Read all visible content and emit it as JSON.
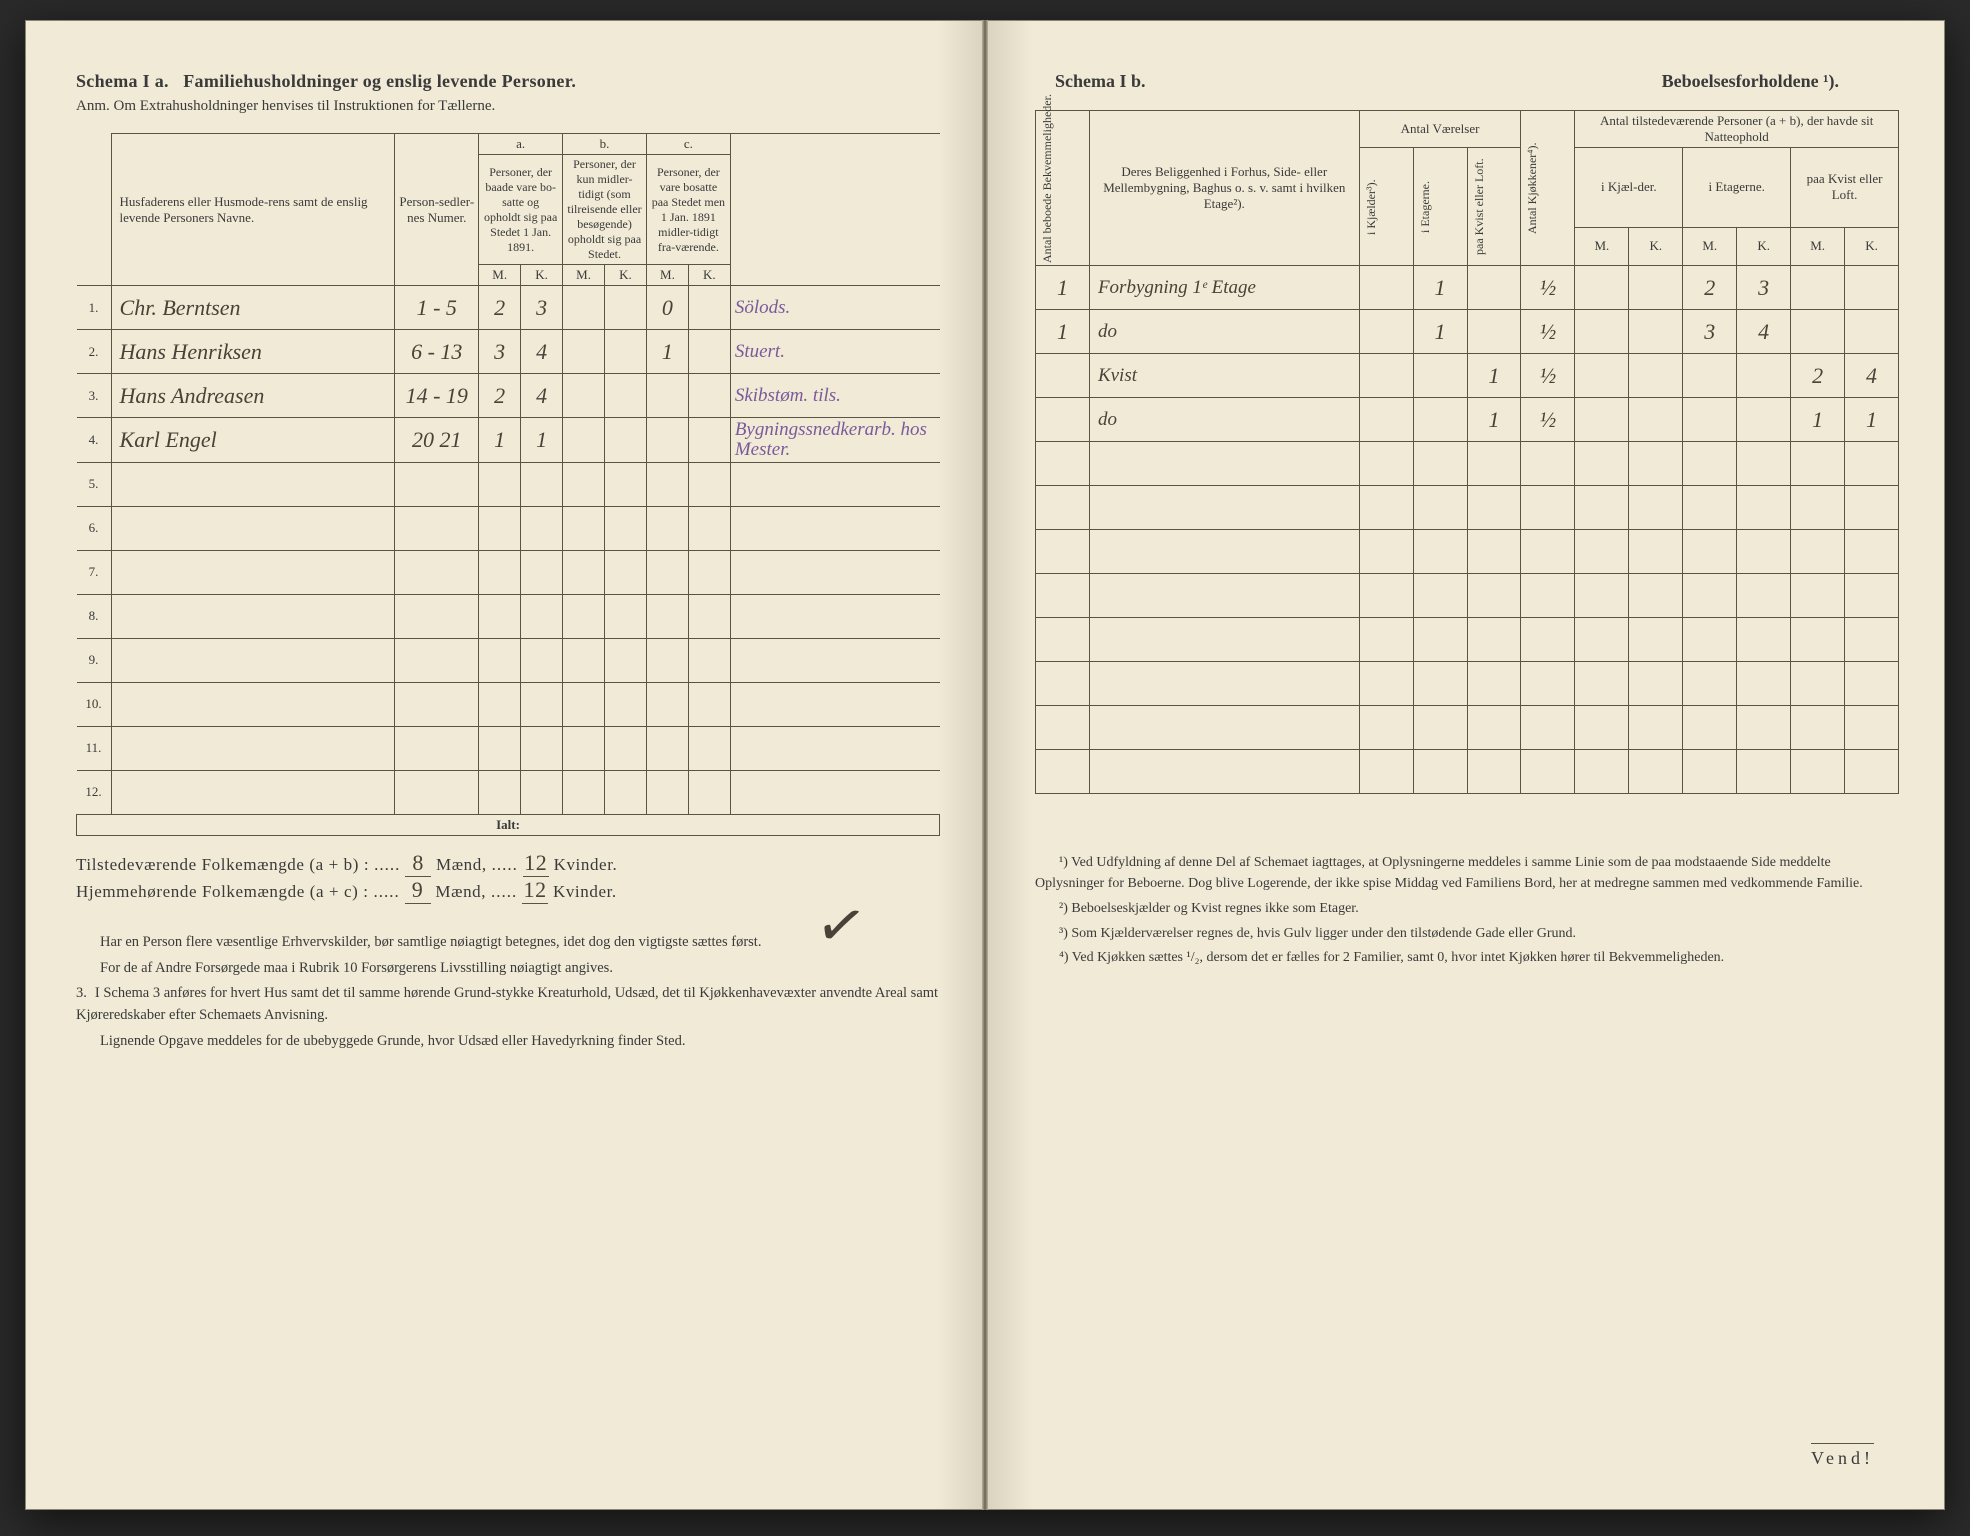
{
  "left": {
    "schema_label": "Schema I a.",
    "title": "Familiehusholdninger og enslig levende Personer.",
    "subtitle": "Anm. Om Extrahusholdninger henvises til Instruktionen for Tællerne.",
    "columns": {
      "name": "Husfaderens eller Husmode-rens samt de enslig levende Personers Navne.",
      "pers_num": "Person-sedler-nes Numer.",
      "a": "a.",
      "a_desc": "Personer, der baade vare bo-satte og opholdt sig paa Stedet 1 Jan. 1891.",
      "b": "b.",
      "b_desc": "Personer, der kun midler-tidigt (som tilreisende eller besøgende) opholdt sig paa Stedet.",
      "c": "c.",
      "c_desc": "Personer, der vare bosatte paa Stedet men 1 Jan. 1891 midler-tidigt fra-værende.",
      "m": "M.",
      "k": "K."
    },
    "rows": [
      {
        "n": "1.",
        "name": "Chr. Berntsen",
        "nums": "1 - 5",
        "aM": "2",
        "aK": "3",
        "bM": "",
        "bK": "",
        "cM": "0",
        "cK": "",
        "occ": "Sölods."
      },
      {
        "n": "2.",
        "name": "Hans Henriksen",
        "nums": "6 - 13",
        "aM": "3",
        "aK": "4",
        "bM": "",
        "bK": "",
        "cM": "1",
        "cK": "",
        "occ": "Stuert."
      },
      {
        "n": "3.",
        "name": "Hans Andreasen",
        "nums": "14 - 19",
        "aM": "2",
        "aK": "4",
        "bM": "",
        "bK": "",
        "cM": "",
        "cK": "",
        "occ": "Skibstøm. tils."
      },
      {
        "n": "4.",
        "name": "Karl Engel",
        "nums": "20 21",
        "aM": "1",
        "aK": "1",
        "bM": "",
        "bK": "",
        "cM": "",
        "cK": "",
        "occ": "Bygningssnedkerarb. hos Mester."
      },
      {
        "n": "5.",
        "name": "",
        "nums": "",
        "aM": "",
        "aK": "",
        "bM": "",
        "bK": "",
        "cM": "",
        "cK": "",
        "occ": ""
      },
      {
        "n": "6.",
        "name": "",
        "nums": "",
        "aM": "",
        "aK": "",
        "bM": "",
        "bK": "",
        "cM": "",
        "cK": "",
        "occ": ""
      },
      {
        "n": "7.",
        "name": "",
        "nums": "",
        "aM": "",
        "aK": "",
        "bM": "",
        "bK": "",
        "cM": "",
        "cK": "",
        "occ": ""
      },
      {
        "n": "8.",
        "name": "",
        "nums": "",
        "aM": "",
        "aK": "",
        "bM": "",
        "bK": "",
        "cM": "",
        "cK": "",
        "occ": ""
      },
      {
        "n": "9.",
        "name": "",
        "nums": "",
        "aM": "",
        "aK": "",
        "bM": "",
        "bK": "",
        "cM": "",
        "cK": "",
        "occ": ""
      },
      {
        "n": "10.",
        "name": "",
        "nums": "",
        "aM": "",
        "aK": "",
        "bM": "",
        "bK": "",
        "cM": "",
        "cK": "",
        "occ": ""
      },
      {
        "n": "11.",
        "name": "",
        "nums": "",
        "aM": "",
        "aK": "",
        "bM": "",
        "bK": "",
        "cM": "",
        "cK": "",
        "occ": ""
      },
      {
        "n": "12.",
        "name": "",
        "nums": "",
        "aM": "",
        "aK": "",
        "bM": "",
        "bK": "",
        "cM": "",
        "cK": "",
        "occ": ""
      }
    ],
    "ialt": "Ialt:",
    "totals": {
      "line1_label": "Tilstedeværende Folkemængde (a + b) : ",
      "line1_m": "8",
      "line1_mlabel": "Mænd, ",
      "line1_k": "12",
      "line1_klabel": "Kvinder.",
      "line2_label": "Hjemmehørende Folkemængde (a + c) : ",
      "line2_m": "9",
      "line2_k": "12"
    },
    "footer": [
      "Har en Person flere væsentlige Erhvervskilder, bør samtlige nøiagtigt betegnes, idet dog den vigtigste sættes først.",
      "For de af Andre Forsørgede maa i Rubrik 10 Forsørgerens Livsstilling nøiagtigt angives.",
      "I Schema 3 anføres for hvert Hus samt det til samme hørende Grund-stykke Kreaturhold, Udsæd, det til Kjøkkenhavevæxter anvendte Areal samt Kjøreredskaber efter Schemaets Anvisning.",
      "Lignende Opgave meddeles for de ubebyggede Grunde, hvor Udsæd eller Havedyrkning finder Sted."
    ],
    "footer_marker": "3."
  },
  "right": {
    "schema_label": "Schema I b.",
    "title": "Beboelsesforholdene ¹).",
    "columns": {
      "bekv": "Antal beboede Bekvemmeligheder.",
      "belig": "Deres Beliggenhed i Forhus, Side- eller Mellembygning, Baghus o. s. v. samt i hvilken Etage²).",
      "vaer": "Antal Værelser",
      "kjok": "Antal Kjøkkener⁴).",
      "natt": "Antal tilstedeværende Personer (a + b), der havde sit Natteophold",
      "kjael": "i Kjælder³).",
      "etag": "i Etagerne.",
      "kvist": "paa Kvist eller Loft.",
      "kjael2": "i Kjæl-der.",
      "etag2": "i Etagerne.",
      "kvist2": "paa Kvist eller Loft.",
      "m": "M.",
      "k": "K."
    },
    "rows": [
      {
        "bekv": "1",
        "belig": "Forbygning 1ᵉ Etage",
        "kj": "",
        "et": "1",
        "kv": "",
        "kjok": "½",
        "km": "",
        "kk": "",
        "em": "2",
        "ek": "3",
        "lm": "",
        "lk": ""
      },
      {
        "bekv": "1",
        "belig": "do",
        "kj": "",
        "et": "1",
        "kv": "",
        "kjok": "½",
        "km": "",
        "kk": "",
        "em": "3",
        "ek": "4",
        "lm": "",
        "lk": ""
      },
      {
        "bekv": "",
        "belig": "Kvist",
        "kj": "",
        "et": "",
        "kv": "1",
        "kjok": "½",
        "km": "",
        "kk": "",
        "em": "",
        "ek": "",
        "lm": "2",
        "lk": "4"
      },
      {
        "bekv": "",
        "belig": "do",
        "kj": "",
        "et": "",
        "kv": "1",
        "kjok": "½",
        "km": "",
        "kk": "",
        "em": "",
        "ek": "",
        "lm": "1",
        "lk": "1"
      },
      {
        "bekv": "",
        "belig": "",
        "kj": "",
        "et": "",
        "kv": "",
        "kjok": "",
        "km": "",
        "kk": "",
        "em": "",
        "ek": "",
        "lm": "",
        "lk": ""
      },
      {
        "bekv": "",
        "belig": "",
        "kj": "",
        "et": "",
        "kv": "",
        "kjok": "",
        "km": "",
        "kk": "",
        "em": "",
        "ek": "",
        "lm": "",
        "lk": ""
      },
      {
        "bekv": "",
        "belig": "",
        "kj": "",
        "et": "",
        "kv": "",
        "kjok": "",
        "km": "",
        "kk": "",
        "em": "",
        "ek": "",
        "lm": "",
        "lk": ""
      },
      {
        "bekv": "",
        "belig": "",
        "kj": "",
        "et": "",
        "kv": "",
        "kjok": "",
        "km": "",
        "kk": "",
        "em": "",
        "ek": "",
        "lm": "",
        "lk": ""
      },
      {
        "bekv": "",
        "belig": "",
        "kj": "",
        "et": "",
        "kv": "",
        "kjok": "",
        "km": "",
        "kk": "",
        "em": "",
        "ek": "",
        "lm": "",
        "lk": ""
      },
      {
        "bekv": "",
        "belig": "",
        "kj": "",
        "et": "",
        "kv": "",
        "kjok": "",
        "km": "",
        "kk": "",
        "em": "",
        "ek": "",
        "lm": "",
        "lk": ""
      },
      {
        "bekv": "",
        "belig": "",
        "kj": "",
        "et": "",
        "kv": "",
        "kjok": "",
        "km": "",
        "kk": "",
        "em": "",
        "ek": "",
        "lm": "",
        "lk": ""
      },
      {
        "bekv": "",
        "belig": "",
        "kj": "",
        "et": "",
        "kv": "",
        "kjok": "",
        "km": "",
        "kk": "",
        "em": "",
        "ek": "",
        "lm": "",
        "lk": ""
      }
    ],
    "footnotes": [
      "¹) Ved Udfyldning af denne Del af Schemaet iagttages, at Oplysningerne meddeles i samme Linie som de paa modstaaende Side meddelte Oplysninger for Beboerne. Dog blive Logerende, der ikke spise Middag ved Familiens Bord, her at medregne sammen med vedkommende Familie.",
      "²) Beboelseskjælder og Kvist regnes ikke som Etager.",
      "³) Som Kjælderværelser regnes de, hvis Gulv ligger under den tilstødende Gade eller Grund.",
      "⁴) Ved Kjøkken sættes ¹/₂, dersom det er fælles for 2 Familier, samt 0, hvor intet Kjøkken hører til Bekvemmeligheden."
    ],
    "vend": "Vend!"
  },
  "colors": {
    "paper": "#f0ead6",
    "ink": "#3a3a3a",
    "rule": "#5a5444",
    "hand_brown": "#4a4238",
    "hand_purple": "#7a5a9a"
  }
}
